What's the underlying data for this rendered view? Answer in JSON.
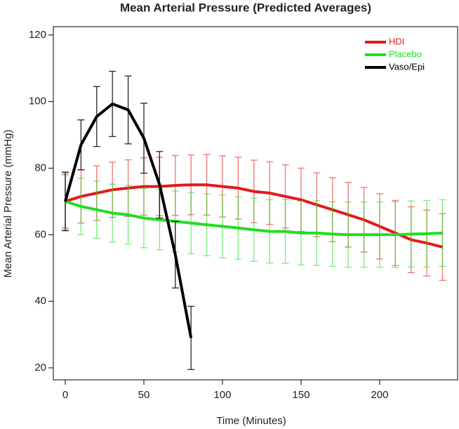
{
  "chart_data": {
    "type": "line",
    "title": "Mean Arterial Pressure (Predicted Averages)",
    "x_label": "Time (Minutes)",
    "y_label": "Mean Arterial Pressure (mmHg)",
    "x": [
      0,
      10,
      20,
      30,
      40,
      50,
      60,
      70,
      80,
      90,
      100,
      110,
      120,
      130,
      140,
      150,
      160,
      170,
      180,
      190,
      200,
      210,
      220,
      230,
      240
    ],
    "series": [
      {
        "name": "HDI",
        "color": "#e31a1c",
        "values": [
          70,
          71.5,
          72.5,
          73.5,
          74,
          74.5,
          74.5,
          74.8,
          75,
          75,
          74.5,
          74,
          73,
          72.5,
          71.5,
          70.5,
          69,
          67.5,
          66,
          64.5,
          62.5,
          60.5,
          58.5,
          57.5,
          56.3
        ],
        "errors": [
          8,
          8,
          8.2,
          8.3,
          8.5,
          8.6,
          8.8,
          9,
          9,
          9.1,
          9.2,
          9.3,
          9.4,
          9.4,
          9.5,
          9.5,
          9.6,
          9.6,
          9.7,
          9.7,
          9.8,
          9.8,
          9.9,
          9.9,
          10
        ]
      },
      {
        "name": "Placebo",
        "color": "#22dd22",
        "values": [
          70,
          68.5,
          67.5,
          66.5,
          66,
          65,
          64.5,
          64,
          63.5,
          63,
          62.5,
          62,
          61.5,
          61,
          61,
          60.5,
          60.5,
          60.2,
          60,
          60,
          60,
          60,
          60.2,
          60.3,
          60.5
        ],
        "errors": [
          8.5,
          8.5,
          8.6,
          8.7,
          8.8,
          8.9,
          9,
          9.1,
          9.2,
          9.3,
          9.4,
          9.4,
          9.5,
          9.5,
          9.6,
          9.6,
          9.7,
          9.7,
          9.8,
          9.8,
          9.8,
          9.9,
          9.9,
          10,
          10
        ]
      },
      {
        "name": "Vaso/Epi",
        "color": "#000000",
        "values": [
          70,
          87,
          95.5,
          99.3,
          97.5,
          89,
          75,
          54,
          29,
          null,
          null,
          null,
          null,
          null,
          null,
          null,
          null,
          null,
          null,
          null,
          null,
          null,
          null,
          null,
          null
        ],
        "errors": [
          8.8,
          7.5,
          9,
          9.8,
          10.2,
          10.5,
          10,
          10,
          9.5,
          null,
          null,
          null,
          null,
          null,
          null,
          null,
          null,
          null,
          null,
          null,
          null,
          null,
          null,
          null,
          null
        ]
      }
    ],
    "xlim": [
      -7.6,
      249.6
    ],
    "xticks": [
      0,
      50,
      100,
      150,
      200
    ],
    "ylim": [
      16.4,
      122.5
    ],
    "yticks": [
      20,
      40,
      60,
      80,
      100,
      120
    ],
    "grid": false,
    "legend": "top-right"
  }
}
